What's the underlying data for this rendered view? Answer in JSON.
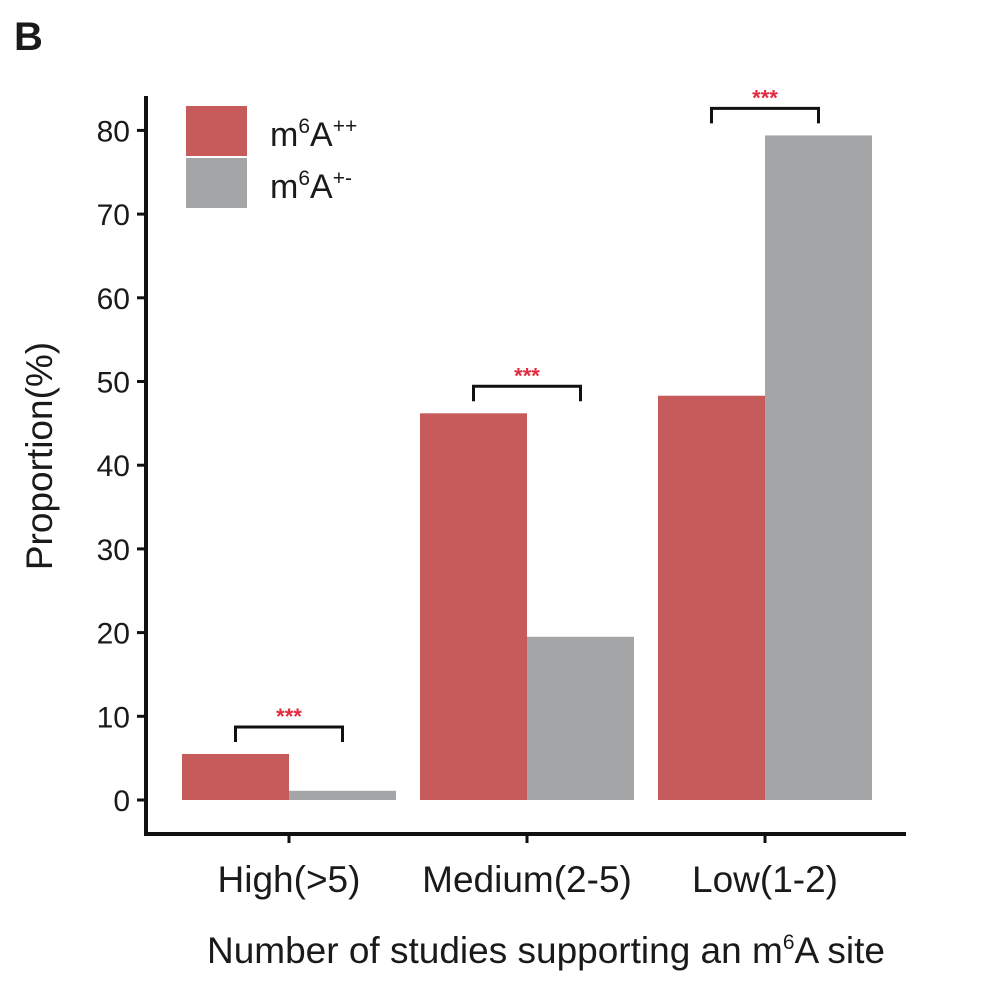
{
  "panel_label": "B",
  "colors": {
    "m6A_pp": "#c75b5c",
    "m6A_pm": "#a4a5a7",
    "axis": "#111111",
    "significance": "#e32b3f"
  },
  "chart_data": {
    "type": "bar",
    "title": "",
    "xlabel": {
      "pre": "Number of studies supporting an m",
      "sup": "6",
      "post": "A site"
    },
    "ylabel": "Proportion(%)",
    "ylim": [
      0,
      84
    ],
    "yticks": [
      0,
      10,
      20,
      30,
      40,
      50,
      60,
      70,
      80
    ],
    "categories": [
      "High(>5)",
      "Medium(2-5)",
      "Low(1-2)"
    ],
    "series": [
      {
        "name": {
          "base": "m",
          "sup1": "6",
          "mid": "A",
          "sup2": "++"
        },
        "values": [
          5.5,
          46.2,
          48.3
        ]
      },
      {
        "name": {
          "base": "m",
          "sup1": "6",
          "mid": "A",
          "sup2": "+-"
        },
        "values": [
          1.1,
          19.5,
          79.4
        ]
      }
    ],
    "significance": [
      "***",
      "***",
      "***"
    ],
    "legend_position": "top-left",
    "grid": false
  }
}
